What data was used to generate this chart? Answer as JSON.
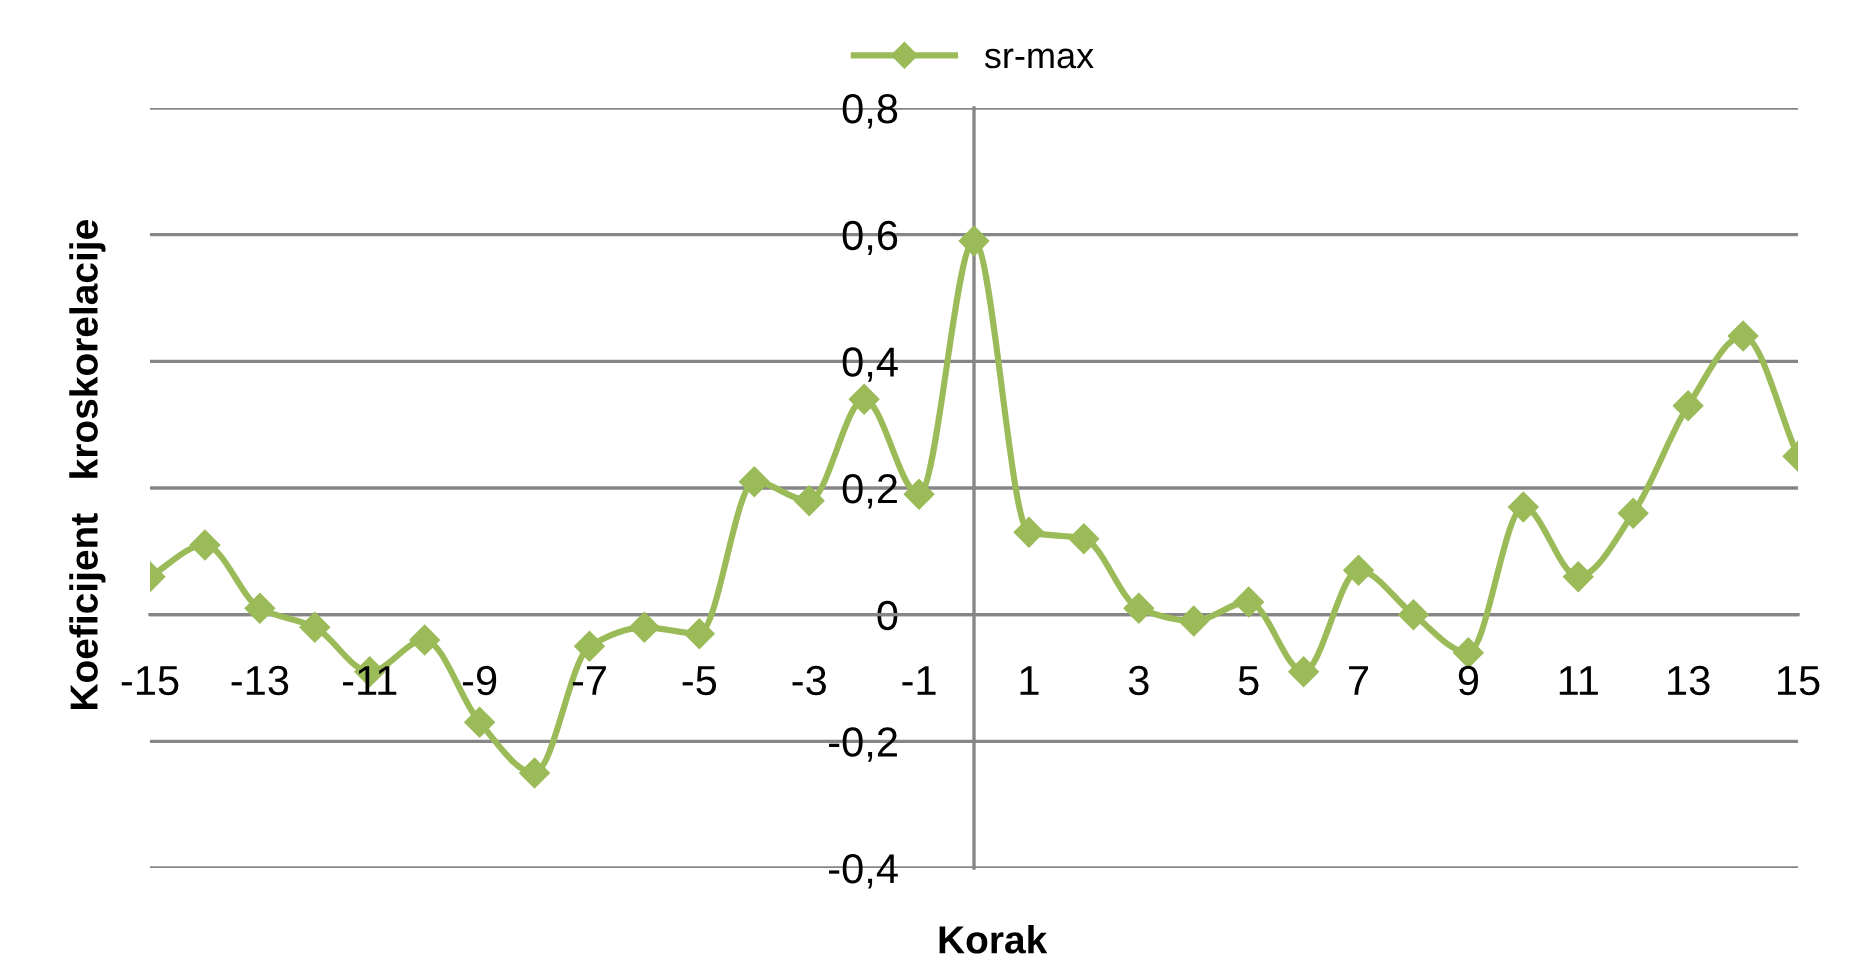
{
  "chart_data": {
    "type": "line",
    "xlabel": "Korak",
    "ylabel": "Koeficijent   kroskorelacije",
    "x": [
      -15,
      -14,
      -13,
      -12,
      -11,
      -10,
      -9,
      -8,
      -7,
      -6,
      -5,
      -4,
      -3,
      -2,
      -1,
      0,
      1,
      2,
      3,
      4,
      5,
      6,
      7,
      8,
      9,
      10,
      11,
      12,
      13,
      14,
      15
    ],
    "series": [
      {
        "name": "sr-max",
        "color": "#9bbb59",
        "values": [
          0.06,
          0.11,
          0.01,
          -0.02,
          -0.09,
          -0.04,
          -0.17,
          -0.25,
          -0.05,
          -0.02,
          -0.03,
          0.21,
          0.18,
          0.34,
          0.19,
          0.59,
          0.13,
          0.12,
          0.01,
          -0.01,
          0.02,
          -0.09,
          0.07,
          0.0,
          -0.06,
          0.17,
          0.06,
          0.16,
          0.33,
          0.44,
          0.25
        ]
      }
    ],
    "xlim": [
      -15,
      15
    ],
    "xticks": [
      -15,
      -13,
      -11,
      -9,
      -7,
      -5,
      -3,
      -1,
      1,
      3,
      5,
      7,
      9,
      11,
      13,
      15
    ],
    "ylim": [
      -0.4,
      0.8
    ],
    "yticks": [
      {
        "value": -0.4,
        "label": "-0,4"
      },
      {
        "value": -0.2,
        "label": "-0,2"
      },
      0,
      {
        "value": 0.2,
        "label": "0,2"
      },
      {
        "value": 0.4,
        "label": "0,4"
      },
      {
        "value": 0.6,
        "label": "0,6"
      },
      {
        "value": 0.8,
        "label": "0,8"
      }
    ],
    "grid": "y",
    "legend": "top",
    "marker": "diamond"
  }
}
